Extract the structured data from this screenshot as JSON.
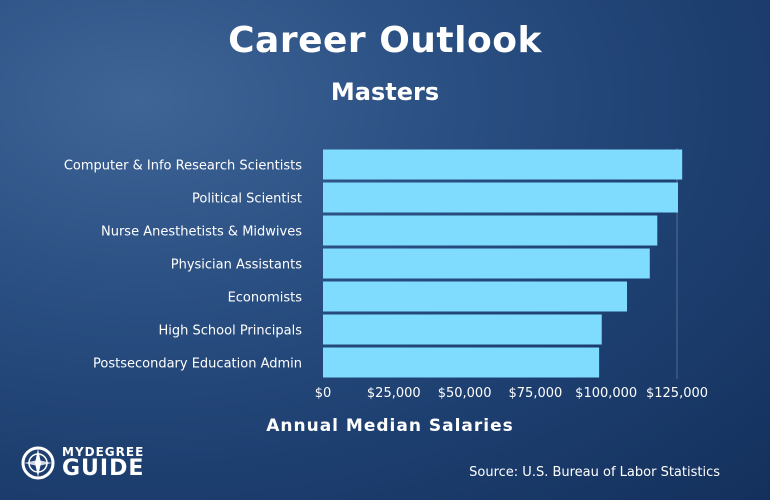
{
  "chart_data": {
    "type": "bar",
    "orientation": "horizontal",
    "title": "Career Outlook",
    "subtitle": "Masters",
    "categories": [
      "Computer & Info Research Scientists",
      "Political Scientist",
      "Nurse Anesthetists & Midwives",
      "Physician Assistants",
      "Economists",
      "High School Principals",
      "Postsecondary Education Admin"
    ],
    "values": [
      126830,
      125350,
      118040,
      115390,
      107350,
      98420,
      97500
    ],
    "xlabel": "Annual Median Salaries",
    "ylabel": "",
    "xlim": [
      0,
      125000
    ],
    "xticks": [
      "$0",
      "$25,000",
      "$50,000",
      "$75,000",
      "$100,000",
      "$125,000"
    ],
    "grid": false,
    "bar_color": "#7fdcff"
  },
  "footer": {
    "source": "Source: U.S. Bureau of Labor Statistics",
    "logo_top": "MYDEGREE",
    "logo_bottom": "GUIDE"
  },
  "icons": {
    "logo": "compass-icon"
  }
}
